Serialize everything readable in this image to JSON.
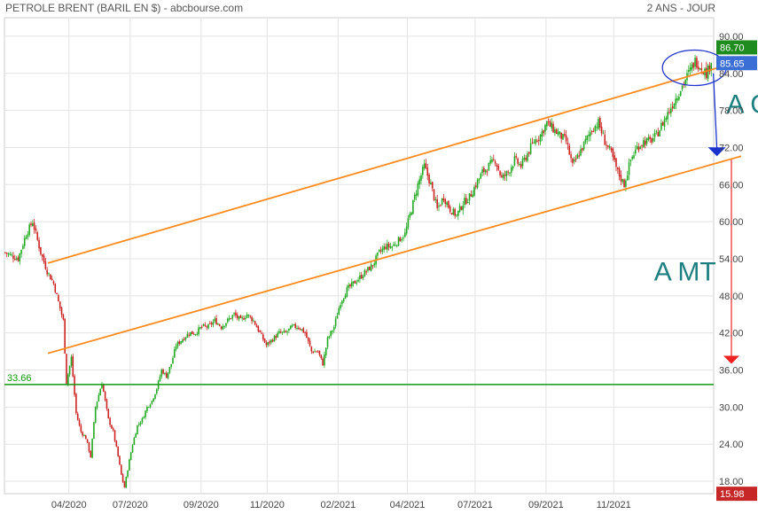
{
  "header": {
    "title": "PETROLE BRENT (BARIL EN $) - abcbourse.com",
    "period": "2 ANS - JOUR"
  },
  "chart_data": {
    "type": "candlestick",
    "x_tick_labels": [
      "04/2020",
      "07/2020",
      "09/2020",
      "11/2020",
      "02/2021",
      "04/2021",
      "07/2021",
      "09/2021",
      "11/2021"
    ],
    "y_ticks": [
      18,
      24,
      30,
      36,
      42,
      48,
      54,
      60,
      66,
      72,
      78,
      84,
      90
    ],
    "y_tick_labels": [
      "18.00",
      "24.00",
      "30.00",
      "36.00",
      "42.00",
      "48.00",
      "54.00",
      "60.00",
      "66.00",
      "72.00",
      "78.00",
      "84.00",
      "90.00"
    ],
    "ylim": [
      16,
      93
    ],
    "last_price": 85.65,
    "last_price_label": "85.65",
    "high_label": "86.70",
    "low_price": 15.98,
    "low_label": "15.98",
    "support_level": 33.66,
    "support_label": "33.66",
    "price_path": [
      [
        0,
        55
      ],
      [
        8,
        54
      ],
      [
        13,
        58
      ],
      [
        17,
        60
      ],
      [
        22,
        55
      ],
      [
        26,
        52
      ],
      [
        30,
        50
      ],
      [
        33,
        47
      ],
      [
        36,
        44
      ],
      [
        38,
        34
      ],
      [
        41,
        38
      ],
      [
        44,
        29
      ],
      [
        47,
        26
      ],
      [
        50,
        25
      ],
      [
        53,
        22
      ],
      [
        56,
        30
      ],
      [
        60,
        34
      ],
      [
        64,
        28
      ],
      [
        67,
        26
      ],
      [
        70,
        22
      ],
      [
        72,
        19
      ],
      [
        74,
        17
      ],
      [
        76,
        20
      ],
      [
        79,
        24
      ],
      [
        82,
        27
      ],
      [
        85,
        28
      ],
      [
        88,
        30
      ],
      [
        91,
        31
      ],
      [
        94,
        33
      ],
      [
        97,
        36
      ],
      [
        100,
        35
      ],
      [
        103,
        37
      ],
      [
        106,
        40
      ],
      [
        110,
        41
      ],
      [
        114,
        42
      ],
      [
        118,
        42
      ],
      [
        122,
        43
      ],
      [
        126,
        43
      ],
      [
        130,
        44
      ],
      [
        134,
        43
      ],
      [
        138,
        44
      ],
      [
        142,
        45
      ],
      [
        146,
        44
      ],
      [
        150,
        45
      ],
      [
        154,
        44
      ],
      [
        158,
        42
      ],
      [
        162,
        40
      ],
      [
        166,
        41
      ],
      [
        170,
        42
      ],
      [
        174,
        42
      ],
      [
        178,
        43
      ],
      [
        182,
        43
      ],
      [
        186,
        42
      ],
      [
        190,
        39
      ],
      [
        194,
        39
      ],
      [
        197,
        37
      ],
      [
        200,
        41
      ],
      [
        204,
        43
      ],
      [
        208,
        47
      ],
      [
        212,
        49
      ],
      [
        216,
        50
      ],
      [
        220,
        51
      ],
      [
        224,
        52
      ],
      [
        228,
        53
      ],
      [
        232,
        55
      ],
      [
        236,
        56
      ],
      [
        240,
        56
      ],
      [
        244,
        57
      ],
      [
        248,
        58
      ],
      [
        252,
        62
      ],
      [
        256,
        66
      ],
      [
        260,
        69
      ],
      [
        264,
        66
      ],
      [
        268,
        62
      ],
      [
        272,
        64
      ],
      [
        276,
        62
      ],
      [
        280,
        61
      ],
      [
        284,
        63
      ],
      [
        288,
        64
      ],
      [
        292,
        66
      ],
      [
        296,
        68
      ],
      [
        300,
        69
      ],
      [
        304,
        70
      ],
      [
        308,
        67
      ],
      [
        312,
        68
      ],
      [
        316,
        70
      ],
      [
        320,
        69
      ],
      [
        324,
        71
      ],
      [
        328,
        73
      ],
      [
        332,
        74
      ],
      [
        336,
        76
      ],
      [
        340,
        75
      ],
      [
        344,
        74
      ],
      [
        348,
        73
      ],
      [
        352,
        69
      ],
      [
        356,
        71
      ],
      [
        360,
        73
      ],
      [
        364,
        75
      ],
      [
        368,
        76
      ],
      [
        372,
        73
      ],
      [
        376,
        71
      ],
      [
        380,
        68
      ],
      [
        384,
        66
      ],
      [
        388,
        70
      ],
      [
        392,
        72
      ],
      [
        396,
        73
      ],
      [
        400,
        73
      ],
      [
        404,
        74
      ],
      [
        408,
        76
      ],
      [
        412,
        78
      ],
      [
        416,
        80
      ],
      [
        420,
        82
      ],
      [
        424,
        84
      ],
      [
        428,
        86
      ],
      [
        432,
        85
      ],
      [
        435,
        84
      ],
      [
        438,
        85.65
      ]
    ],
    "channel_upper": [
      [
        27,
        53.3
      ],
      [
        457,
        86.0
      ]
    ],
    "channel_lower": [
      [
        27,
        38.7
      ],
      [
        457,
        70.6
      ]
    ],
    "annotations": [
      {
        "text": "A CT",
        "target": 70.6
      },
      {
        "text": "A MT",
        "target": 37.0
      }
    ],
    "colors": {
      "up": "#22aa22",
      "down": "#cc2222",
      "channel": "#ff8a1e",
      "support": "#119911",
      "ct_arrow": "#1a33cc",
      "mt_arrow": "#ee2222",
      "annotation": "#1d7f80",
      "ellipse": "#2233cc",
      "grid": "#e3e3e3"
    }
  }
}
